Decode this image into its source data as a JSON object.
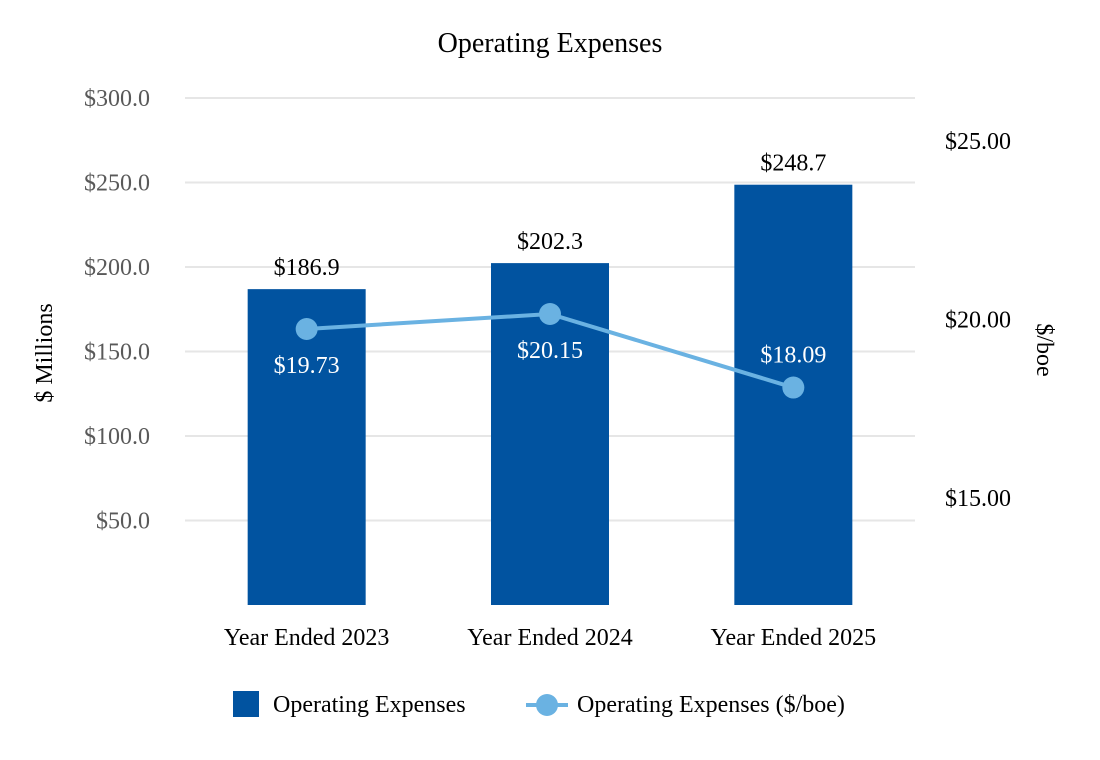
{
  "chart_data": {
    "type": "bar",
    "title": "Operating Expenses",
    "categories": [
      "Year Ended 2023",
      "Year Ended 2024",
      "Year Ended 2025"
    ],
    "y_left": {
      "label": "$ Millions",
      "range": [
        0,
        300
      ],
      "ticks": [
        50,
        100,
        150,
        200,
        250,
        300
      ],
      "tick_labels": [
        "$50.0",
        "$100.0",
        "$150.0",
        "$200.0",
        "$250.0",
        "$300.0"
      ]
    },
    "y_right": {
      "label": "$/boe",
      "range": [
        12.0,
        26.2
      ],
      "ticks": [
        15,
        20,
        25
      ],
      "tick_labels": [
        "$15.00",
        "$20.00",
        "$25.00"
      ]
    },
    "grid": true,
    "legend_position": "bottom",
    "series": [
      {
        "name": "Operating Expenses",
        "kind": "bar",
        "axis": "left",
        "color": "#0153A0",
        "values": [
          186.9,
          202.3,
          248.7
        ],
        "labels": [
          "$186.9",
          "$202.3",
          "$248.7"
        ]
      },
      {
        "name": "Operating Expenses ($/boe)",
        "kind": "line",
        "axis": "right",
        "color": "#6AB2E2",
        "values": [
          19.73,
          20.15,
          18.09
        ],
        "labels": [
          "$19.73",
          "$20.15",
          "$18.09"
        ]
      }
    ]
  }
}
